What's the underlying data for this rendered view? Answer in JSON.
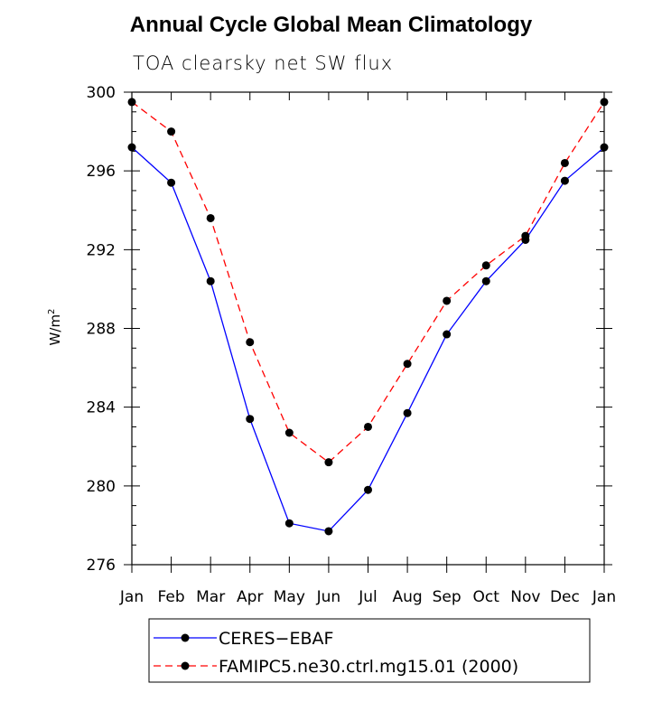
{
  "chart_data": {
    "type": "line",
    "title": "Annual Cycle Global Mean Climatology",
    "subtitle": "TOA clearsky net SW flux",
    "ylabel": "W/m",
    "ylabel_sup": "2",
    "xlabel": "",
    "categories": [
      "Jan",
      "Feb",
      "Mar",
      "Apr",
      "May",
      "Jun",
      "Jul",
      "Aug",
      "Sep",
      "Oct",
      "Nov",
      "Dec",
      "Jan"
    ],
    "ylim": [
      276,
      300
    ],
    "yticks": [
      276,
      280,
      284,
      288,
      292,
      296,
      300
    ],
    "series": [
      {
        "name": "CERES−EBAF",
        "color": "#0000ff",
        "dash": "solid",
        "values": [
          297.2,
          295.4,
          290.4,
          283.4,
          278.1,
          277.7,
          279.8,
          283.7,
          287.7,
          290.4,
          292.5,
          295.5,
          297.2
        ]
      },
      {
        "name": "FAMIPC5.ne30.ctrl.mg15.01 (2000)",
        "color": "#ff0000",
        "dash": "dashed",
        "values": [
          299.5,
          298.0,
          293.6,
          287.3,
          282.7,
          281.2,
          283.0,
          286.2,
          289.4,
          291.2,
          292.7,
          296.4,
          299.5
        ]
      }
    ],
    "grid": false,
    "legend": "bottom"
  }
}
